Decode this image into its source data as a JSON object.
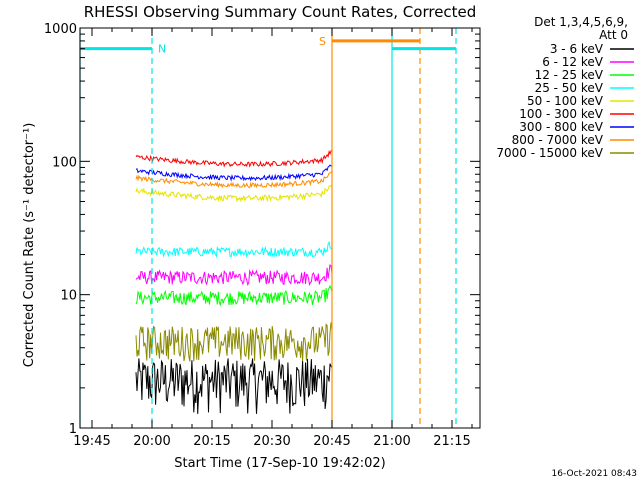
{
  "chart_data": {
    "type": "line",
    "title": "RHESSI Observing Summary Count Rates, Corrected",
    "xlabel": "Start Time (17-Sep-10 19:42:02)",
    "ylabel": "Corrected Count Rate (s⁻¹ detector⁻¹)",
    "yscale": "log",
    "ylim": [
      1,
      1000
    ],
    "xlim": [
      "19:42",
      "21:22"
    ],
    "x_ticks": [
      "19:45",
      "20:00",
      "20:15",
      "20:30",
      "20:45",
      "21:00",
      "21:15"
    ],
    "y_ticks": [
      "1",
      "10",
      "100",
      "1000"
    ],
    "legend_title": [
      "Det 1,3,4,5,6,9,",
      "Att 0"
    ],
    "timestamp": "16-Oct-2021 08:43",
    "markers": [
      {
        "label": "N",
        "color": "#00e5e5"
      },
      {
        "label": "S",
        "color": "#ff8c00"
      }
    ],
    "data_window": {
      "start": "19:56",
      "end": "20:45"
    },
    "night_bars": [
      {
        "label": "N",
        "from": "19:42",
        "to": "20:00",
        "y": 700,
        "color": "#00e5e5"
      },
      {
        "label": "",
        "from": "21:00",
        "to": "21:16",
        "y": 700,
        "color": "#00e5e5"
      }
    ],
    "saa_bars": [
      {
        "label": "S",
        "from": "20:45",
        "to": "21:07",
        "y": 800,
        "color": "#ff8c00"
      }
    ],
    "vlines": [
      {
        "t": "19:42",
        "color": "#00e5e5",
        "style": "solid"
      },
      {
        "t": "20:00",
        "color": "#00e5e5",
        "style": "dashed"
      },
      {
        "t": "20:45",
        "color": "#ff8c00",
        "style": "solid"
      },
      {
        "t": "21:00",
        "color": "#00e5e5",
        "style": "solid"
      },
      {
        "t": "21:07",
        "color": "#ff8c00",
        "style": "dashed"
      },
      {
        "t": "21:16",
        "color": "#00e5e5",
        "style": "dashed"
      }
    ],
    "series": [
      {
        "name": "3 - 6 keV",
        "color": "#000000",
        "level": 2.3,
        "noise": 0.45
      },
      {
        "name": "6 - 12 keV",
        "color": "#ff00ff",
        "level": 13.5,
        "noise": 0.12
      },
      {
        "name": "12 - 25 keV",
        "color": "#00ff00",
        "level": 9.5,
        "noise": 0.12
      },
      {
        "name": "25 - 50 keV",
        "color": "#00ffff",
        "level": 21,
        "noise": 0.08
      },
      {
        "name": "50 - 100 keV",
        "color": "#e5e500",
        "level": 60,
        "noise": 0.05
      },
      {
        "name": "100 - 300 keV",
        "color": "#ff0000",
        "level": 108,
        "noise": 0.04
      },
      {
        "name": "300 - 800 keV",
        "color": "#0000ff",
        "level": 85,
        "noise": 0.04
      },
      {
        "name": "800 - 7000 keV",
        "color": "#ff8c00",
        "level": 75,
        "noise": 0.04
      },
      {
        "name": "7000 - 15000 keV",
        "color": "#8b8b00",
        "level": 4.5,
        "noise": 0.3
      }
    ]
  }
}
